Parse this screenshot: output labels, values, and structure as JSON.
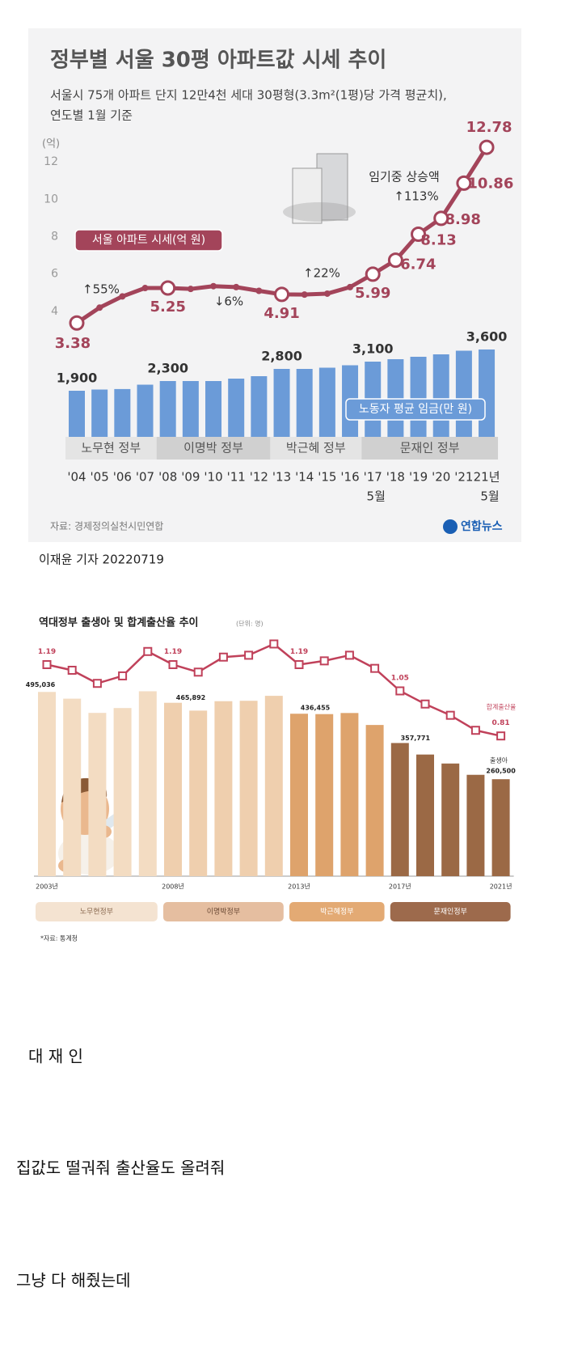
{
  "chart_data": [
    {
      "type": "combo",
      "title": "정부별 서울 30평 아파트값 시세 추이",
      "subtitle": [
        "서울시 75개 아파트 단지 12만4천 세대 30평형(3.3m²(1평)당 가격 평균치),",
        "연도별 1월 기준"
      ],
      "unit": "(억)",
      "categories": [
        "'04",
        "'05",
        "'06",
        "'07",
        "'08",
        "'09",
        "'10",
        "'11",
        "'12",
        "'13",
        "'14",
        "'15",
        "'16",
        "'17",
        "'18",
        "'19",
        "'20",
        "'21",
        "21년"
      ],
      "x_sublabels": [
        null,
        null,
        null,
        null,
        null,
        null,
        null,
        null,
        null,
        null,
        null,
        null,
        null,
        "5월",
        null,
        null,
        null,
        null,
        "5월"
      ],
      "ylim": [
        3,
        13
      ],
      "yticks": [
        4,
        6,
        8,
        10,
        12
      ],
      "y2lim": [
        0,
        3800
      ],
      "grid": false,
      "series": [
        {
          "name": "노동자 평균 임금(만 원)",
          "type": "bar",
          "axis": "y2",
          "color": "#6b9bd8",
          "values": [
            1900,
            1950,
            1970,
            2150,
            2300,
            2300,
            2300,
            2400,
            2500,
            2800,
            2800,
            2850,
            2950,
            3100,
            3200,
            3300,
            3400,
            3550,
            3600
          ],
          "value_labels": [
            "1,900",
            null,
            null,
            null,
            "2,300",
            null,
            null,
            null,
            null,
            "2,800",
            null,
            null,
            null,
            "3,100",
            null,
            null,
            null,
            null,
            "3,600"
          ]
        },
        {
          "name": "서울 아파트 시세(억 원)",
          "type": "line",
          "axis": "y",
          "color": "#a3445a",
          "values": [
            3.38,
            4.2,
            4.8,
            5.25,
            5.25,
            5.2,
            5.35,
            5.3,
            5.1,
            4.91,
            4.9,
            4.95,
            5.3,
            5.99,
            6.74,
            8.13,
            8.98,
            10.86,
            12.78
          ],
          "value_labels": [
            "3.38",
            null,
            null,
            null,
            "5.25",
            null,
            null,
            null,
            null,
            "4.91",
            null,
            null,
            null,
            "5.99",
            "6.74",
            "8.13",
            "8.98",
            "10.86",
            "12.78"
          ]
        }
      ],
      "annotations": [
        "↑55%",
        "↓6%",
        "↑22%",
        "임기중 상승액",
        "↑113%"
      ],
      "periods": [
        "노무현 정부",
        "이명박 정부",
        "박근혜 정부",
        "문재인 정부"
      ],
      "source": "자료: 경제정의실천시민연합",
      "logo": "연합뉴스"
    },
    {
      "type": "combo",
      "title": "역대정부 출생아 및 합계출산율 추이",
      "unit": "(단위: 명)",
      "categories": [
        "2003년",
        null,
        null,
        null,
        null,
        "2008년",
        null,
        null,
        null,
        null,
        "2013년",
        null,
        null,
        null,
        "2017년",
        null,
        null,
        null,
        "2021년"
      ],
      "ylim": [
        0,
        500000
      ],
      "y2lim": [
        0.8,
        1.3
      ],
      "grid": false,
      "series": [
        {
          "name": "출생아",
          "type": "bar",
          "axis": "y",
          "colors": [
            "#f3dcc2",
            "#f3dcc2",
            "#f3dcc2",
            "#f3dcc2",
            "#f3dcc2",
            "#efcfae",
            "#efcfae",
            "#efcfae",
            "#efcfae",
            "#efcfae",
            "#dea36c",
            "#dea36c",
            "#dea36c",
            "#dea36c",
            "#9b6945",
            "#9b6945",
            "#9b6945",
            "#9b6945",
            "#9b6945"
          ],
          "values": [
            495036,
            476958,
            438707,
            451759,
            496822,
            465892,
            444849,
            470171,
            471265,
            484550,
            436455,
            435435,
            438420,
            406243,
            357771,
            326822,
            302676,
            272337,
            260500
          ],
          "value_labels": [
            "495,036",
            null,
            null,
            null,
            null,
            "465,892",
            null,
            null,
            null,
            null,
            "436,455",
            null,
            null,
            null,
            "357,771",
            null,
            null,
            null,
            "260,500"
          ]
        },
        {
          "name": "합계출산율",
          "type": "line",
          "axis": "y2",
          "color": "#c0415a",
          "values": [
            1.19,
            1.16,
            1.09,
            1.13,
            1.26,
            1.19,
            1.15,
            1.23,
            1.24,
            1.3,
            1.19,
            1.21,
            1.24,
            1.17,
            1.05,
            0.98,
            0.92,
            0.84,
            0.81
          ],
          "value_labels": [
            "1.19",
            null,
            null,
            null,
            null,
            "1.19",
            null,
            null,
            null,
            null,
            "1.19",
            null,
            null,
            null,
            "1.05",
            null,
            null,
            null,
            "0.81"
          ]
        }
      ],
      "periods": [
        "노무현정부",
        "이명박정부",
        "박근혜정부",
        "문재인정부"
      ],
      "source": "*자료: 통계청"
    }
  ],
  "post": {
    "byline": "이재윤 기자 20220719",
    "lines": [
      "대 재 인",
      "집값도 떨궈줘  출산율도 올려줘",
      "그냥 다 해줬는데"
    ]
  }
}
